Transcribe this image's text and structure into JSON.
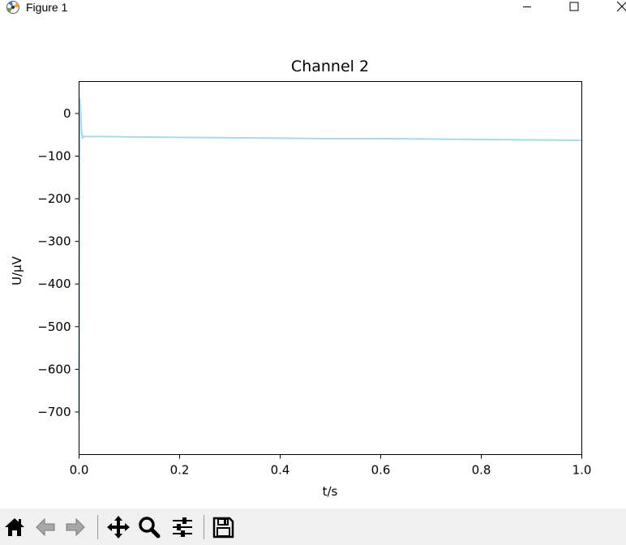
{
  "window": {
    "title": "Figure 1",
    "icons": {
      "app": "matplotlib-logo-icon",
      "minimize": "minimize-icon",
      "maximize": "maximize-icon",
      "close": "close-icon"
    }
  },
  "toolbar": {
    "buttons": [
      {
        "name": "home-icon"
      },
      {
        "name": "back-arrow-icon"
      },
      {
        "name": "forward-arrow-icon"
      },
      {
        "name": "pan-icon"
      },
      {
        "name": "zoom-icon"
      },
      {
        "name": "configure-subplots-icon"
      },
      {
        "name": "save-icon"
      }
    ]
  },
  "chart_data": {
    "type": "line",
    "title": "Channel 2",
    "xlabel": "t/s",
    "ylabel": "U/µV",
    "xlim": [
      0.0,
      1.0
    ],
    "ylim": [
      -800,
      75
    ],
    "x_ticks": [
      0.0,
      0.2,
      0.4,
      0.6,
      0.8,
      1.0
    ],
    "x_tick_labels": [
      "0.0",
      "0.2",
      "0.4",
      "0.6",
      "0.8",
      "1.0"
    ],
    "y_ticks": [
      0,
      -100,
      -200,
      -300,
      -400,
      -500,
      -600,
      -700
    ],
    "y_tick_labels": [
      "0",
      "−100",
      "−200",
      "−300",
      "−400",
      "−500",
      "−600",
      "−700"
    ],
    "grid": false,
    "line_color": "#add8e6",
    "series": [
      {
        "x": [
          0.0,
          0.0015,
          0.003,
          0.005,
          0.0065,
          0.008,
          0.01,
          0.012,
          0.02,
          0.05,
          0.1,
          0.2,
          0.3,
          0.4,
          0.5,
          0.6,
          0.7,
          0.8,
          0.9,
          1.0
        ],
        "values": [
          -720,
          35,
          10,
          -40,
          -58,
          -52,
          -55,
          -54,
          -54,
          -54,
          -55,
          -56,
          -57,
          -58,
          -59,
          -59,
          -60,
          -61,
          -62,
          -63
        ]
      }
    ]
  }
}
